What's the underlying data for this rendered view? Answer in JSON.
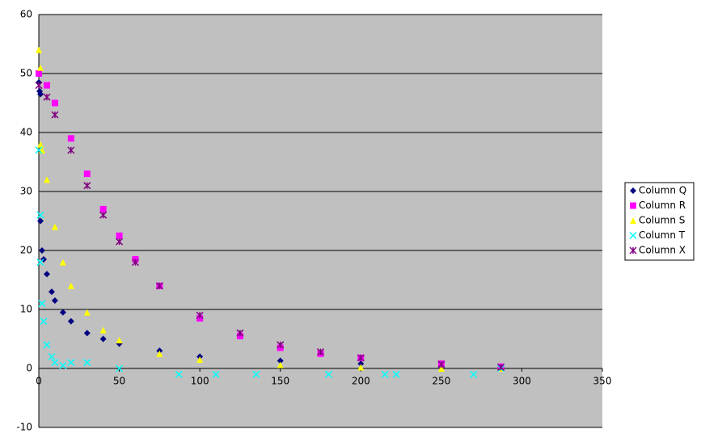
{
  "chart_data": {
    "type": "scatter",
    "xlim": [
      0,
      350
    ],
    "xticks": [
      0,
      50,
      100,
      150,
      200,
      250,
      300,
      350
    ],
    "ylim": [
      -10,
      60
    ],
    "yticks": [
      -10,
      0,
      10,
      20,
      30,
      40,
      50,
      60
    ],
    "grid": true,
    "legend": "right",
    "series": [
      {
        "name": "Column Q",
        "color": "#000080",
        "marker": "diamond",
        "x": [
          0,
          0.5,
          1,
          1,
          2,
          3,
          5,
          8,
          10,
          15,
          20,
          30,
          40,
          50,
          75,
          100,
          150,
          200,
          250,
          287
        ],
        "values": [
          48.5,
          47,
          46.5,
          25,
          20,
          18.5,
          16,
          13,
          11.5,
          9.5,
          8,
          6,
          5,
          4.2,
          3,
          2,
          1.3,
          0.8,
          0.4,
          0.1
        ]
      },
      {
        "name": "Column R",
        "color": "#ff00ff",
        "marker": "square",
        "x": [
          0,
          5,
          10,
          20,
          30,
          40,
          50,
          60,
          75,
          100,
          125,
          150,
          175,
          200,
          250,
          287
        ],
        "values": [
          50,
          48,
          45,
          39,
          33,
          27,
          22.5,
          18.5,
          14,
          8.5,
          5.5,
          3.5,
          2.5,
          1.8,
          0.8,
          0.3
        ]
      },
      {
        "name": "Column S",
        "color": "#ffff00",
        "marker": "triangle",
        "x": [
          0,
          1,
          1,
          2,
          5,
          10,
          15,
          20,
          30,
          40,
          50,
          75,
          100,
          150,
          200,
          250,
          287
        ],
        "values": [
          54,
          51,
          38,
          37,
          32,
          24,
          18,
          14,
          9.5,
          6.5,
          4.8,
          2.5,
          1.5,
          0.6,
          0.2,
          0,
          0
        ]
      },
      {
        "name": "Column T",
        "color": "#00ffff",
        "marker": "x",
        "x": [
          0,
          1,
          1,
          2,
          3,
          5,
          8,
          10,
          15,
          20,
          30,
          50,
          87,
          110,
          135,
          180,
          215,
          222,
          270,
          287
        ],
        "values": [
          37,
          26,
          18,
          11,
          8,
          4,
          2,
          1,
          0.5,
          1,
          1,
          0,
          -1,
          -1,
          -1,
          -1,
          -1,
          -1,
          -1,
          0
        ]
      },
      {
        "name": "Column X",
        "color": "#800080",
        "marker": "star",
        "x": [
          0,
          5,
          10,
          20,
          30,
          40,
          50,
          60,
          75,
          100,
          125,
          150,
          175,
          200,
          250,
          287
        ],
        "values": [
          48,
          46,
          43,
          37,
          31,
          26,
          21.5,
          18,
          14,
          9,
          6,
          4,
          2.8,
          1.8,
          0.7,
          0.2
        ]
      }
    ]
  }
}
